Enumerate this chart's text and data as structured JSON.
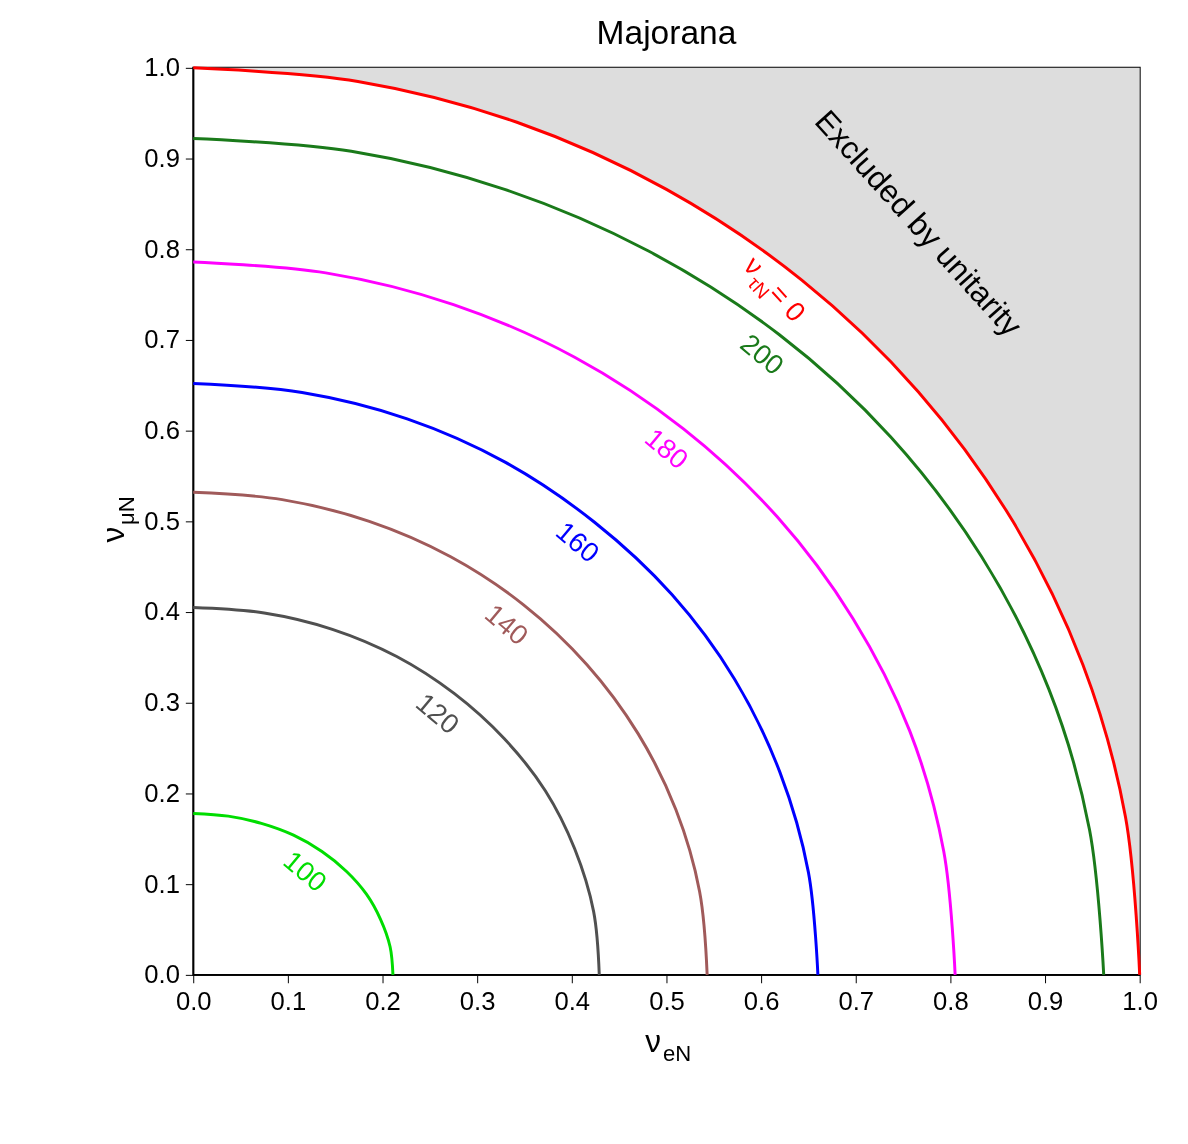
{
  "chart_data": {
    "type": "line",
    "title": "Majorana",
    "xlabel": "ν$_{eN}$",
    "ylabel": "ν$_{μN}$",
    "xlim": [
      0,
      1
    ],
    "ylim": [
      0,
      1
    ],
    "xticks": [
      {
        "value": 0,
        "label": "0.0"
      },
      {
        "value": 0.1,
        "label": "0.1"
      },
      {
        "value": 0.2,
        "label": "0.2"
      },
      {
        "value": 0.3,
        "label": "0.3"
      },
      {
        "value": 0.4,
        "label": "0.4"
      },
      {
        "value": 0.5,
        "label": "0.5"
      },
      {
        "value": 0.6,
        "label": "0.6"
      },
      {
        "value": 0.7,
        "label": "0.7"
      },
      {
        "value": 0.8,
        "label": "0.8"
      },
      {
        "value": 0.9,
        "label": "0.9"
      },
      {
        "value": 1,
        "label": "1.0"
      }
    ],
    "yticks": [
      {
        "value": 0,
        "label": "0.0"
      },
      {
        "value": 0.1,
        "label": "0.1"
      },
      {
        "value": 0.2,
        "label": "0.2"
      },
      {
        "value": 0.3,
        "label": "0.3"
      },
      {
        "value": 0.4,
        "label": "0.4"
      },
      {
        "value": 0.5,
        "label": "0.5"
      },
      {
        "value": 0.6,
        "label": "0.6"
      },
      {
        "value": 0.7,
        "label": "0.7"
      },
      {
        "value": 0.8,
        "label": "0.8"
      },
      {
        "value": 0.9,
        "label": "0.9"
      },
      {
        "value": 1,
        "label": "1.0"
      }
    ],
    "grid": false,
    "legend": false,
    "series": [
      {
        "name": "100",
        "color": "#00dd00",
        "x": [
          0.211,
          0.208,
          0.198,
          0.183,
          0.162,
          0.136,
          0.106,
          0.072,
          0.037,
          0
        ],
        "values": [
          0,
          0.031,
          0.061,
          0.089,
          0.114,
          0.136,
          0.154,
          0.167,
          0.175,
          0.178
        ]
      },
      {
        "name": "120",
        "color": "#505050",
        "x": [
          0.429,
          0.423,
          0.403,
          0.372,
          0.329,
          0.276,
          0.215,
          0.147,
          0.075,
          0
        ],
        "values": [
          0,
          0.07,
          0.139,
          0.203,
          0.26,
          0.31,
          0.351,
          0.381,
          0.399,
          0.405
        ]
      },
      {
        "name": "140",
        "color": "#a05a5a",
        "x": [
          0.543,
          0.535,
          0.51,
          0.47,
          0.416,
          0.349,
          0.272,
          0.186,
          0.094,
          0
        ],
        "values": [
          0,
          0.092,
          0.182,
          0.266,
          0.342,
          0.408,
          0.461,
          0.5,
          0.524,
          0.532
        ]
      },
      {
        "name": "160",
        "color": "#0000ff",
        "x": [
          0.66,
          0.65,
          0.62,
          0.572,
          0.506,
          0.424,
          0.33,
          0.226,
          0.115,
          0
        ],
        "values": [
          0,
          0.113,
          0.223,
          0.326,
          0.419,
          0.499,
          0.565,
          0.613,
          0.642,
          0.652
        ]
      },
      {
        "name": "180",
        "color": "#ff00ff",
        "x": [
          0.805,
          0.793,
          0.757,
          0.697,
          0.617,
          0.518,
          0.403,
          0.275,
          0.14,
          0
        ],
        "values": [
          0,
          0.136,
          0.269,
          0.393,
          0.505,
          0.602,
          0.681,
          0.739,
          0.774,
          0.786
        ]
      },
      {
        "name": "200",
        "color": "#1a7a1a",
        "x": [
          0.962,
          0.947,
          0.904,
          0.833,
          0.737,
          0.619,
          0.481,
          0.329,
          0.167,
          0
        ],
        "values": [
          0,
          0.16,
          0.315,
          0.461,
          0.593,
          0.706,
          0.798,
          0.866,
          0.908,
          0.922
        ]
      },
      {
        "name": "ν$_{τN}$ = 0",
        "color": "#ff0000",
        "x": [
          1,
          0.985,
          0.94,
          0.866,
          0.766,
          0.643,
          0.5,
          0.342,
          0.174,
          0
        ],
        "values": [
          0,
          0.174,
          0.342,
          0.5,
          0.643,
          0.766,
          0.866,
          0.94,
          0.985,
          1
        ],
        "lower": [
          0,
          0.174,
          0.342,
          0.5,
          0.643,
          0.766,
          0.866,
          0.94,
          0.985,
          1
        ],
        "upper": [
          1,
          1,
          1,
          1,
          1,
          1,
          1,
          1,
          1,
          1
        ]
      }
    ],
    "annotations": [
      "Excluded by unitarity"
    ]
  }
}
